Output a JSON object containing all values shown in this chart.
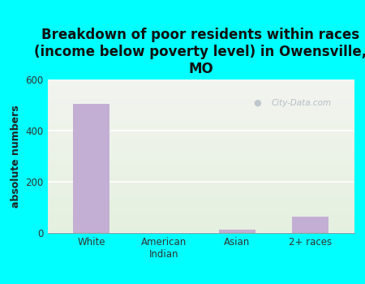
{
  "title": "Breakdown of poor residents within races\n(income below poverty level) in Owensville,\nMO",
  "categories": [
    "White",
    "American\nIndian",
    "Asian",
    "2+ races"
  ],
  "values": [
    505,
    0,
    13,
    65
  ],
  "bar_color": "#c4afd4",
  "ylabel": "absolute numbers",
  "ylim": [
    0,
    600
  ],
  "yticks": [
    0,
    200,
    400,
    600
  ],
  "background_color": "#00ffff",
  "plot_bg_top": "#f2f4ef",
  "plot_bg_bottom": "#e4f0df",
  "title_fontsize": 12,
  "axis_label_fontsize": 9,
  "tick_fontsize": 8.5,
  "watermark": "City-Data.com"
}
